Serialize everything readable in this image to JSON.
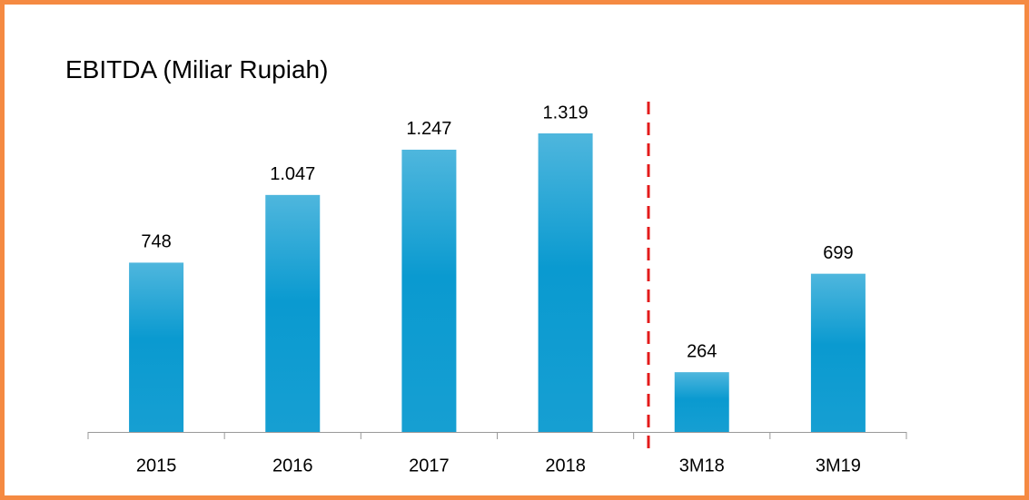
{
  "chart_data": {
    "type": "bar",
    "title": "EBITDA (Miliar Rupiah)",
    "categories": [
      "2015",
      "2016",
      "2017",
      "2018",
      "3M18",
      "3M19"
    ],
    "values": [
      748,
      1047,
      1247,
      1319,
      264,
      699
    ],
    "value_labels": [
      "748",
      "1.047",
      "1.247",
      "1.319",
      "264",
      "699"
    ],
    "color": "#0a9ad0"
  }
}
